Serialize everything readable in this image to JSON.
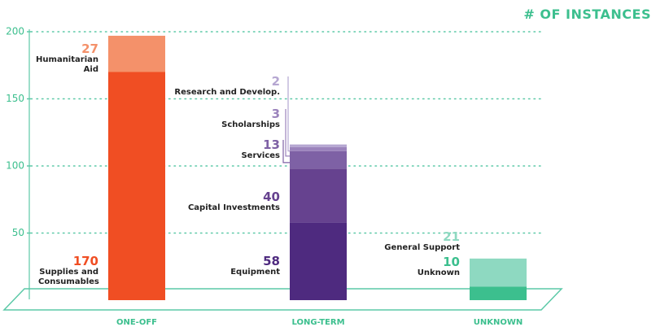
{
  "chart_data": {
    "type": "stacked_bar",
    "title": "# OF INSTANCES",
    "categories": [
      "ONE-OFF",
      "LONG-TERM",
      "UNKNOWN"
    ],
    "series": [
      {
        "name": "Supplies and Consumables",
        "color": "#f04e23",
        "values": [
          170,
          null,
          null
        ]
      },
      {
        "name": "Humanitarian Aid",
        "color": "#f4916a",
        "values": [
          27,
          null,
          null
        ]
      },
      {
        "name": "Equipment",
        "color": "#4e2a7f",
        "values": [
          null,
          58,
          null
        ]
      },
      {
        "name": "Capital Investments",
        "color": "#66428f",
        "values": [
          null,
          40,
          null
        ]
      },
      {
        "name": "Services",
        "color": "#7e61a5",
        "values": [
          null,
          13,
          null
        ]
      },
      {
        "name": "Scholarships",
        "color": "#9b83bc",
        "values": [
          null,
          3,
          null
        ]
      },
      {
        "name": "Research and Develop.",
        "color": "#b5a6d1",
        "values": [
          null,
          2,
          null
        ]
      },
      {
        "name": "Unknown",
        "color": "#3cbf8e",
        "values": [
          null,
          null,
          10
        ]
      },
      {
        "name": "General Support",
        "color": "#8ed9c1",
        "values": [
          null,
          null,
          21
        ]
      }
    ],
    "ylim": [
      0,
      200
    ],
    "yticks": [
      50,
      100,
      150,
      200
    ],
    "grid": true,
    "grid_color": "#5cc9a7"
  }
}
